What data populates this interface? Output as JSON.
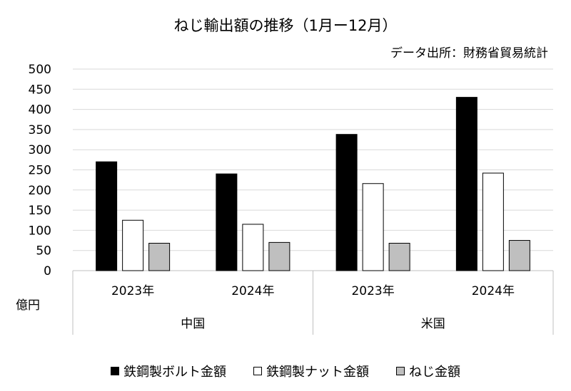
{
  "chart_data": {
    "type": "bar",
    "title": "ねじ輸出額の推移（1月ー12月）",
    "source": "データ出所：財務省貿易統計",
    "ylabel": "億円",
    "ylim": [
      0,
      500
    ],
    "yticks": [
      0,
      50,
      100,
      150,
      200,
      250,
      300,
      350,
      400,
      450,
      500
    ],
    "groups": [
      {
        "label": "中国",
        "categories": [
          "2023年",
          "2024年"
        ]
      },
      {
        "label": "米国",
        "categories": [
          "2023年",
          "2024年"
        ]
      }
    ],
    "series": [
      {
        "name": "鉄鋼製ボルト金額",
        "color": "#000000",
        "values": [
          270,
          240,
          338,
          430
        ]
      },
      {
        "name": "鉄鋼製ナット金額",
        "color": "#ffffff",
        "values": [
          125,
          115,
          216,
          242
        ]
      },
      {
        "name": "ねじ金額",
        "color": "#bfbfbf",
        "values": [
          68,
          70,
          68,
          75
        ]
      }
    ],
    "grid": true,
    "legend_position": "bottom"
  }
}
